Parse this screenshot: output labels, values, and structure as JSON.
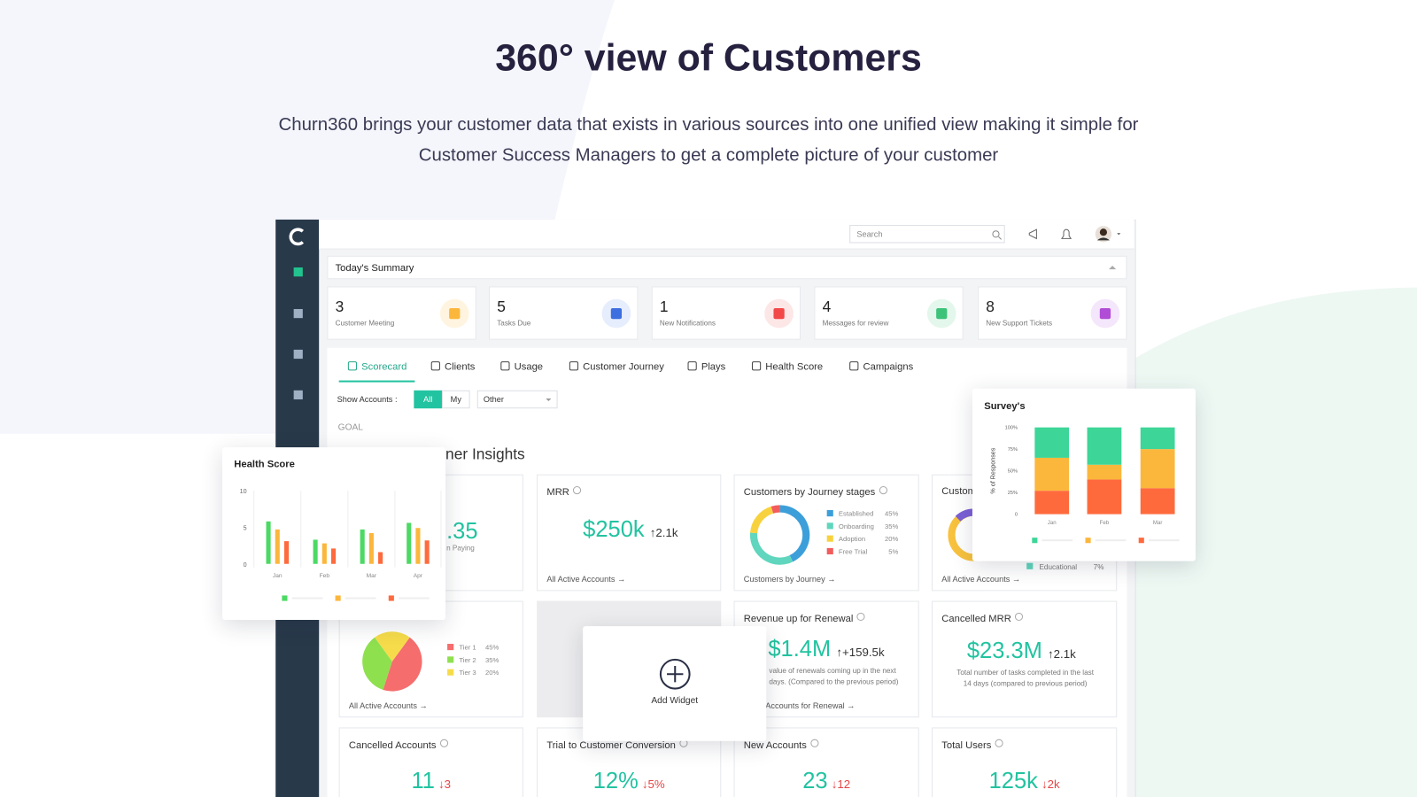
{
  "header": {
    "title": "360° view of Customers",
    "subtitle_lines": [
      "Churn360 brings your customer data that exists in various sources into one unified view making it simple for",
      "Customer Success Managers to get a complete picture of your customer"
    ]
  },
  "topbar": {
    "search": "Search"
  },
  "summary": {
    "title": "Today's Summary",
    "cards": [
      {
        "value": 3,
        "label": "Customer Meeting"
      },
      {
        "value": 5,
        "label": "Tasks Due"
      },
      {
        "value": 1,
        "label": "New Notifications"
      },
      {
        "value": 4,
        "label": "Messages for review"
      },
      {
        "value": 8,
        "label": "New Support Tickets"
      }
    ]
  },
  "tabs": [
    "Scorecard",
    "Clients",
    "Usage",
    "Customer Journey",
    "Plays",
    "Health Score",
    "Campaigns"
  ],
  "filter": {
    "label": "Show Accounts :",
    "options": [
      "All",
      "My"
    ],
    "select": "Other"
  },
  "goal": "GOAL",
  "section_title": "ner Insights",
  "widgets": {
    "paying": {
      "value": ".35",
      "label": "n Paying"
    },
    "mrr": {
      "title": "MRR",
      "value": "$250k",
      "change": "↑2.1k",
      "link": "All Active Accounts →"
    },
    "journey": {
      "title": "Customers by Journey stages",
      "link": "Customers by Journey →",
      "chart": {
        "type": "donut",
        "categories": [
          "Established",
          "Onboarding",
          "Adoption",
          "Free Trial"
        ],
        "values": [
          45,
          35,
          20,
          5
        ],
        "value_labels": [
          "45%",
          "35%",
          "20%",
          "5%"
        ],
        "colors": [
          "#3d9fd9",
          "#5fd6bd",
          "#f8d23e",
          "#f25c5c"
        ]
      }
    },
    "custom": {
      "title": "Custom",
      "legend": [
        "Educational"
      ],
      "legend_values": [
        "7%"
      ],
      "link": "All Active Accounts →"
    },
    "tiers": {
      "link": "All Active Accounts →",
      "chart": {
        "type": "pie",
        "categories": [
          "Tier 1",
          "Tier 2",
          "Tier 3"
        ],
        "values": [
          45,
          35,
          20
        ],
        "value_labels": [
          "45%",
          "35%",
          "20%"
        ],
        "colors": [
          "#f56d6d",
          "#8fe04f",
          "#f6dc4a"
        ]
      }
    },
    "renewal": {
      "title": "Revenue up for Renewal",
      "value": "$1.4M",
      "change": "↑+159.5k",
      "note_lines": [
        "value of renewals coming up in the next",
        "days. (Compared to the previous period)"
      ],
      "link": "Accounts for Renewal →"
    },
    "cancelled_mrr": {
      "title": "Cancelled MRR",
      "value": "$23.3M",
      "change": "↑2.1k",
      "note_lines": [
        "Total number of tasks completed in the last",
        "14 days (compared to previous period)"
      ]
    },
    "cancelled_accounts": {
      "title": "Cancelled Accounts",
      "value": "11",
      "change": "↓3"
    },
    "conversion": {
      "title": "Trial to Customer Conversion",
      "value": "12%",
      "change": "↓5%"
    },
    "new_accounts": {
      "title": "New Accounts",
      "value": "23",
      "change": "↓12"
    },
    "total_users": {
      "title": "Total Users",
      "value": "125k",
      "change": "↓2k"
    }
  },
  "overlays": {
    "health_score": {
      "title": "Health Score",
      "chart": {
        "type": "bar",
        "categories": [
          "Jan",
          "Feb",
          "Mar",
          "Apr"
        ],
        "series": [
          {
            "color": "#4cd964",
            "values": [
              5.8,
              3.3,
              4.7,
              5.6
            ]
          },
          {
            "color": "#fbb73c",
            "values": [
              4.7,
              2.8,
              4.2,
              4.9
            ]
          },
          {
            "color": "#ff6a3d",
            "values": [
              3.1,
              2.1,
              1.6,
              3.2
            ]
          }
        ],
        "ylim": [
          0,
          10
        ],
        "yticks": [
          0,
          5,
          10
        ]
      }
    },
    "survey": {
      "title": "Survey's",
      "chart": {
        "type": "stacked_bar",
        "categories": [
          "Jan",
          "Feb",
          "Mar"
        ],
        "y_label": "% of Responses",
        "series": [
          {
            "color": "#ff6a3d",
            "values": [
              27,
              40,
              30
            ]
          },
          {
            "color": "#fbb73c",
            "values": [
              38,
              17,
              45
            ]
          },
          {
            "color": "#3dd598",
            "values": [
              35,
              43,
              25
            ]
          }
        ],
        "ylim": [
          0,
          100
        ],
        "yticks": [
          0,
          {
            "value": 25,
            "label": "25%"
          },
          {
            "value": 50,
            "label": "50%"
          },
          {
            "value": 75,
            "label": "75%"
          },
          {
            "value": 100,
            "label": "100%"
          }
        ]
      }
    },
    "add_widget": "Add Widget"
  }
}
